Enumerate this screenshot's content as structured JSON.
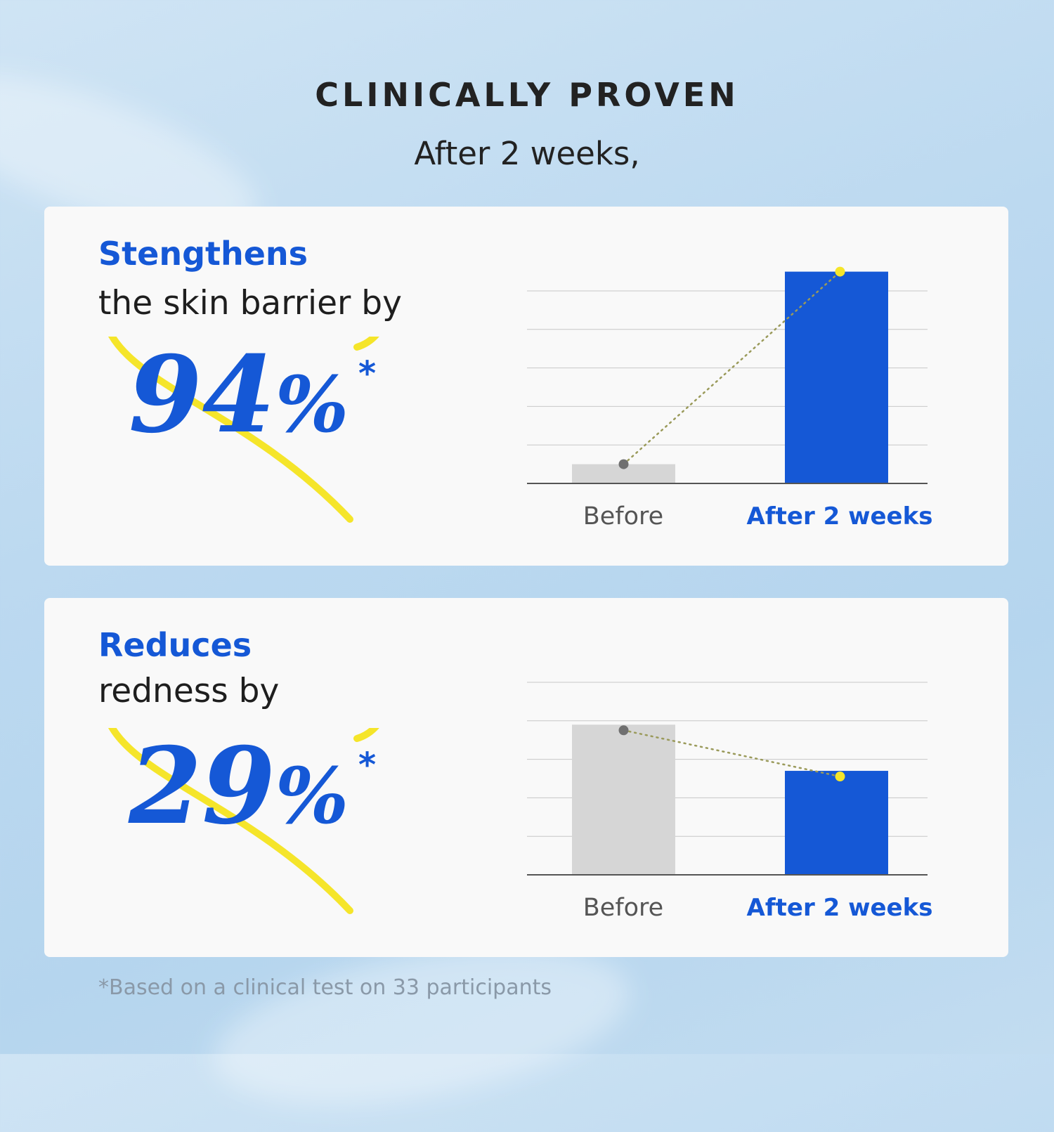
{
  "header": {
    "title": "CLINICALLY PROVEN",
    "subtitle": "After 2 weeks,"
  },
  "cards": [
    {
      "heading": "Stengthens",
      "description": "the skin barrier by",
      "value": "94",
      "unit": "%",
      "asterisk": "*"
    },
    {
      "heading": "Reduces",
      "description": "redness by",
      "value": "29",
      "unit": "%",
      "asterisk": "*"
    }
  ],
  "footnote": "*Based on a clinical test on 33 participants",
  "colors": {
    "accent": "#1558d6",
    "before_bar": "#d6d6d6",
    "highlight": "#f5e52a",
    "marker_before": "#707070"
  },
  "chart_data": [
    {
      "type": "bar",
      "categories": [
        "Before",
        "After 2 weeks"
      ],
      "values": [
        0.5,
        5.5
      ],
      "ylim": [
        0,
        5.5
      ],
      "grid": true,
      "trend_line": "dotted"
    },
    {
      "type": "bar",
      "categories": [
        "Before",
        "After 2 weeks"
      ],
      "values": [
        3.9,
        2.7
      ],
      "ylim": [
        0,
        5.5
      ],
      "grid": true,
      "trend_line": "dotted"
    }
  ]
}
